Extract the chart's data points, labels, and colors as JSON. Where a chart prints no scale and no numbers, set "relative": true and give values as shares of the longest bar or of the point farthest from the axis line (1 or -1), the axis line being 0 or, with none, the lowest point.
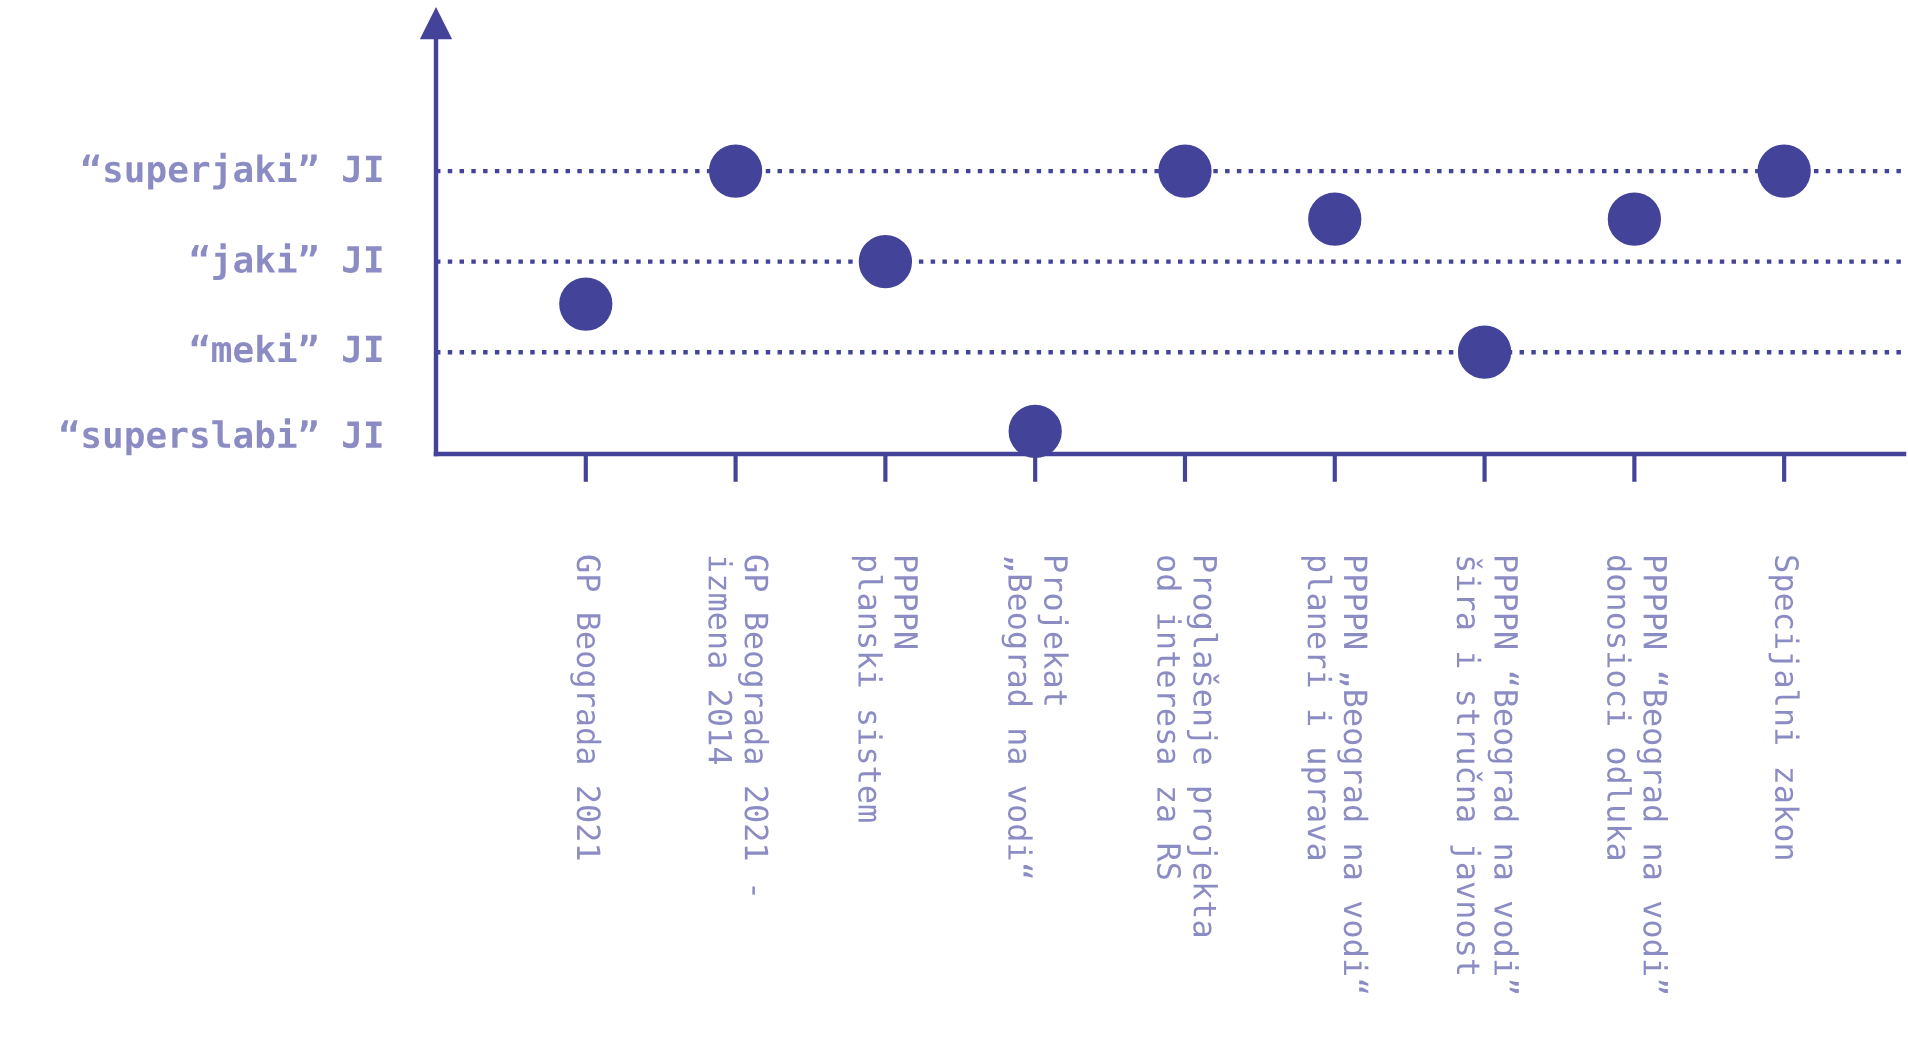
{
  "chart_data": {
    "type": "scatter",
    "relative": true,
    "categories": [
      "GP Beograda 2021",
      "GP Beograda 2021 -\nizmena 2014",
      "PPPPN\nplanski sistem",
      "Projekat\n„Beograd na vodi“",
      "Proglašenje projekta\nod interesa za RS",
      "PPPPN „Beograd na vodi“\nplaneri i uprava",
      "PPPPN “Beograd na vodi”\nšira i stručna javnost",
      "PPPPN “Beograd na vodi”\ndonosioci odluka",
      "Specijalni zakon"
    ],
    "series": [
      {
        "color": "#43439a",
        "values": [
          0.53,
          1.0,
          0.68,
          0.08,
          1.0,
          0.83,
          0.36,
          0.83,
          1.0
        ]
      }
    ],
    "ref_lines": [
      {
        "axis": "y",
        "value": 1.0,
        "label": "“superjaki” JI",
        "color": "#43439a",
        "line_style": "dotted"
      },
      {
        "axis": "y",
        "value": 0.68,
        "label": "“jaki” JI",
        "color": "#43439a",
        "line_style": "dotted"
      },
      {
        "axis": "y",
        "value": 0.36,
        "label": "“meki” JI",
        "color": "#43439a",
        "line_style": "dotted"
      }
    ],
    "annotations": [
      "“superslabi” JI"
    ],
    "grid": false,
    "legend": false,
    "marker": "circle"
  }
}
